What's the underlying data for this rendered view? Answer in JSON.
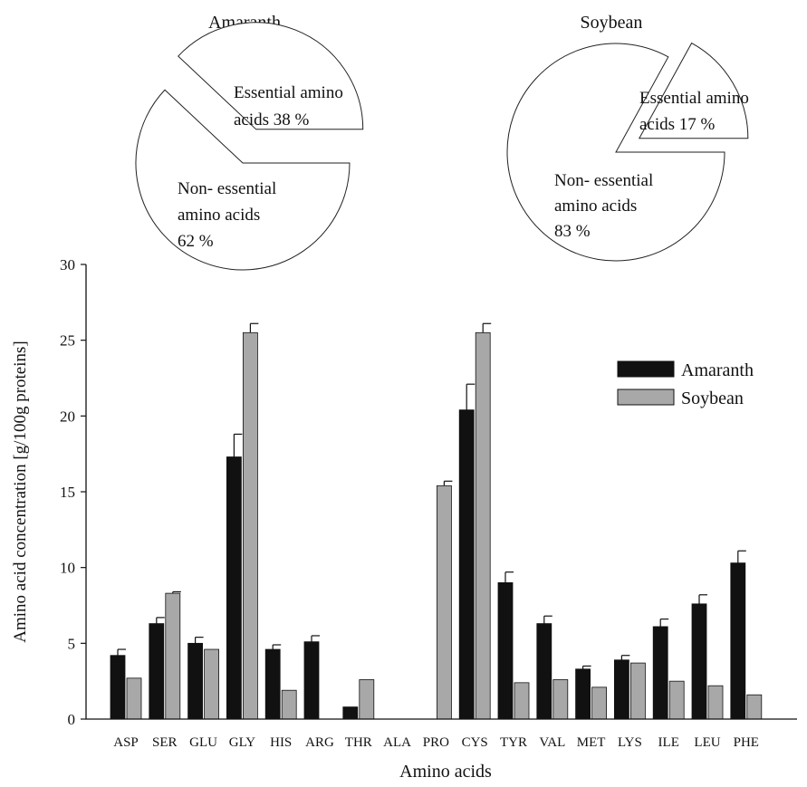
{
  "chart_data": [
    {
      "type": "pie",
      "title": "Amaranth",
      "slices": [
        {
          "name": "Essential amino acids",
          "value": 38,
          "label_lines": [
            "Essential amino",
            "acids 38 %"
          ],
          "exploded": true
        },
        {
          "name": "Non- essential amino acids",
          "value": 62,
          "label_lines": [
            "Non- essential",
            "amino acids",
            "62 %"
          ],
          "exploded": false
        }
      ]
    },
    {
      "type": "pie",
      "title": "Soybean",
      "slices": [
        {
          "name": "Essential amino acids",
          "value": 17,
          "label_lines": [
            "Essential amino",
            "acids 17 %"
          ],
          "exploded": true
        },
        {
          "name": "Non- essential amino acids",
          "value": 83,
          "label_lines": [
            "Non- essential",
            "amino acids",
            "83 %"
          ],
          "exploded": false
        }
      ]
    },
    {
      "type": "bar",
      "categories": [
        "ASP",
        "SER",
        "GLU",
        "GLY",
        "HIS",
        "ARG",
        "THR",
        "ALA",
        "PRO",
        "CYS",
        "TYR",
        "VAL",
        "MET",
        "LYS",
        "ILE",
        "LEU",
        "PHE"
      ],
      "series": [
        {
          "name": "Amaranth",
          "color": "#111111",
          "values": [
            4.2,
            6.3,
            5.0,
            17.3,
            4.6,
            5.1,
            0.8,
            0,
            0,
            20.4,
            9.0,
            6.3,
            3.3,
            3.9,
            6.1,
            7.6,
            10.3
          ],
          "errors": [
            0.4,
            0.4,
            0.4,
            1.5,
            0.3,
            0.4,
            0,
            0,
            0,
            1.7,
            0.7,
            0.5,
            0.2,
            0.3,
            0.5,
            0.6,
            0.8
          ]
        },
        {
          "name": "Soybean",
          "color": "#a8a8a8",
          "values": [
            2.7,
            8.3,
            4.6,
            25.5,
            1.9,
            0,
            2.6,
            0,
            15.4,
            25.5,
            2.4,
            2.6,
            2.1,
            3.7,
            2.5,
            2.2,
            1.6
          ],
          "errors": [
            0,
            0.1,
            0,
            0.6,
            0,
            0,
            0,
            0,
            0.3,
            0.6,
            0,
            0,
            0,
            0,
            0,
            0,
            0
          ]
        }
      ],
      "xlabel": "Amino acids",
      "ylabel": "Amino acid concentration [g/100g proteins]",
      "ylim": [
        0,
        30
      ],
      "yticks": [
        0,
        5,
        10,
        15,
        20,
        25,
        30
      ],
      "legend": "right",
      "grid": false
    }
  ]
}
